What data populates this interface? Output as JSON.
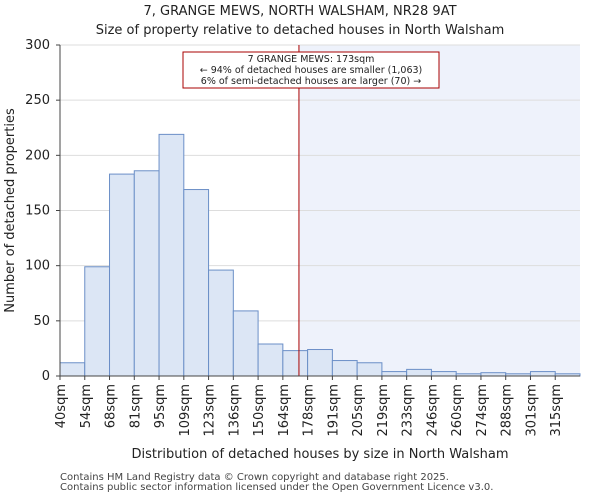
{
  "chart_data": {
    "type": "bar",
    "title": "7, GRANGE MEWS, NORTH WALSHAM, NR28 9AT",
    "subtitle": "Size of property relative to detached houses in North Walsham",
    "xlabel": "Distribution of detached houses by size in North Walsham",
    "ylabel": "Number of detached properties",
    "categories": [
      "40sqm",
      "54sqm",
      "68sqm",
      "81sqm",
      "95sqm",
      "109sqm",
      "123sqm",
      "136sqm",
      "150sqm",
      "164sqm",
      "178sqm",
      "191sqm",
      "205sqm",
      "219sqm",
      "233sqm",
      "246sqm",
      "260sqm",
      "274sqm",
      "288sqm",
      "301sqm",
      "315sqm"
    ],
    "values": [
      12,
      99,
      183,
      186,
      219,
      169,
      96,
      59,
      29,
      23,
      24,
      14,
      12,
      4,
      6,
      4,
      2,
      3,
      2,
      4,
      2
    ],
    "ylim": [
      0,
      300
    ],
    "yticks": [
      0,
      50,
      100,
      150,
      200,
      250,
      300
    ],
    "marker": {
      "value_label": "173sqm",
      "position_bins": 9.65,
      "annotation_lines": [
        "7 GRANGE MEWS: 173sqm",
        "← 94% of detached houses are smaller (1,063)",
        "6% of semi-detached houses are larger (70) →"
      ]
    },
    "colors": {
      "bar_fill": "#dce6f5",
      "bar_stroke": "#6b8fc7",
      "marker_line": "#aa0000",
      "highlight_region": "#eef2fb",
      "annotation_border": "#aa0000"
    }
  },
  "footer": {
    "line1": "Contains HM Land Registry data © Crown copyright and database right 2025.",
    "line2": "Contains public sector information licensed under the Open Government Licence v3.0."
  }
}
